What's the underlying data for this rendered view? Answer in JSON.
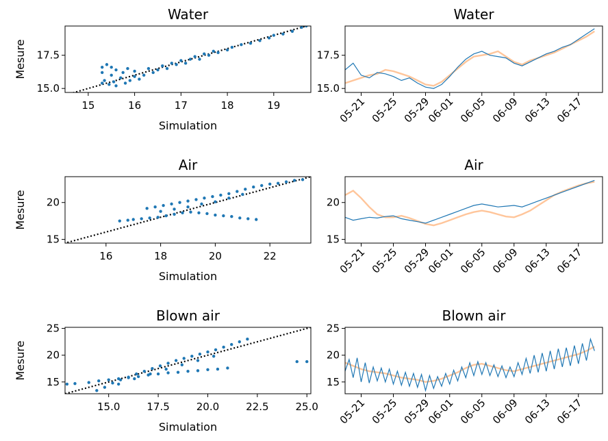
{
  "chart_data": [
    {
      "type": "scatter",
      "panel": "scatter-water",
      "title": "Water",
      "xlabel": "Simulation",
      "ylabel": "Mesure",
      "xlim": [
        14.5,
        19.8
      ],
      "ylim": [
        14.7,
        19.7
      ],
      "xticks": [
        "15",
        "16",
        "17",
        "18",
        "19"
      ],
      "xtick_values": [
        15,
        16,
        17,
        18,
        19
      ],
      "yticks": [
        "15.0",
        "17.5"
      ],
      "ytick_values": [
        15.0,
        17.5
      ],
      "identity_line": true,
      "points": [
        [
          15.3,
          15.4
        ],
        [
          15.3,
          16.2
        ],
        [
          15.3,
          16.6
        ],
        [
          15.35,
          15.6
        ],
        [
          15.4,
          16.8
        ],
        [
          15.45,
          15.3
        ],
        [
          15.5,
          16.0
        ],
        [
          15.5,
          16.6
        ],
        [
          15.55,
          15.5
        ],
        [
          15.6,
          15.2
        ],
        [
          15.6,
          16.4
        ],
        [
          15.7,
          15.8
        ],
        [
          15.75,
          16.2
        ],
        [
          15.8,
          15.4
        ],
        [
          15.85,
          16.5
        ],
        [
          15.9,
          15.6
        ],
        [
          16.0,
          15.9
        ],
        [
          16.0,
          16.3
        ],
        [
          16.1,
          15.7
        ],
        [
          16.2,
          16.0
        ],
        [
          16.3,
          16.5
        ],
        [
          16.4,
          16.2
        ],
        [
          16.5,
          16.4
        ],
        [
          16.6,
          16.7
        ],
        [
          16.7,
          16.5
        ],
        [
          16.8,
          16.9
        ],
        [
          16.9,
          16.8
        ],
        [
          17.0,
          17.1
        ],
        [
          17.1,
          16.9
        ],
        [
          17.2,
          17.2
        ],
        [
          17.3,
          17.4
        ],
        [
          17.4,
          17.2
        ],
        [
          17.5,
          17.6
        ],
        [
          17.6,
          17.5
        ],
        [
          17.7,
          17.8
        ],
        [
          17.8,
          17.7
        ],
        [
          18.0,
          17.9
        ],
        [
          18.1,
          18.1
        ],
        [
          18.3,
          18.3
        ],
        [
          18.5,
          18.4
        ],
        [
          18.7,
          18.6
        ],
        [
          18.9,
          18.8
        ],
        [
          19.0,
          19.0
        ],
        [
          19.2,
          19.1
        ],
        [
          19.4,
          19.3
        ],
        [
          19.6,
          19.6
        ],
        [
          19.7,
          19.7
        ]
      ]
    },
    {
      "type": "line",
      "panel": "ts-water",
      "title": "Water",
      "ylim": [
        14.7,
        19.7
      ],
      "yticks": [
        "15.0",
        "17.5"
      ],
      "ytick_values": [
        15.0,
        17.5
      ],
      "xlim": [
        0,
        32
      ],
      "xticks": [
        "05-21",
        "05-25",
        "05-29",
        "06-01",
        "06-05",
        "06-09",
        "06-13",
        "06-17"
      ],
      "xtick_values": [
        2,
        6,
        10,
        13,
        17,
        21,
        25,
        29
      ],
      "series": [
        {
          "role": "measure",
          "color": "#1f77b4",
          "x": [
            0,
            1,
            2,
            3,
            4,
            5,
            6,
            7,
            8,
            9,
            10,
            11,
            12,
            13,
            14,
            15,
            16,
            17,
            18,
            19,
            20,
            21,
            22,
            23,
            24,
            25,
            26,
            27,
            28,
            29,
            30,
            31
          ],
          "y": [
            16.4,
            16.9,
            16.0,
            15.8,
            16.2,
            16.1,
            15.9,
            15.6,
            15.8,
            15.4,
            15.1,
            15.0,
            15.3,
            15.9,
            16.6,
            17.2,
            17.6,
            17.8,
            17.5,
            17.4,
            17.3,
            16.9,
            16.7,
            17.0,
            17.3,
            17.6,
            17.8,
            18.1,
            18.3,
            18.7,
            19.1,
            19.5
          ]
        },
        {
          "role": "simulation",
          "color": "#ffbb88",
          "x": [
            0,
            1,
            2,
            3,
            4,
            5,
            6,
            7,
            8,
            9,
            10,
            11,
            12,
            13,
            14,
            15,
            16,
            17,
            18,
            19,
            20,
            21,
            22,
            23,
            24,
            25,
            26,
            27,
            28,
            29,
            30,
            31
          ],
          "y": [
            15.4,
            15.6,
            15.8,
            16.0,
            16.1,
            16.4,
            16.3,
            16.1,
            15.9,
            15.6,
            15.3,
            15.2,
            15.5,
            16.0,
            16.5,
            17.0,
            17.4,
            17.5,
            17.6,
            17.8,
            17.4,
            17.0,
            16.8,
            17.1,
            17.3,
            17.5,
            17.7,
            18.0,
            18.3,
            18.6,
            18.9,
            19.3
          ]
        }
      ]
    },
    {
      "type": "scatter",
      "panel": "scatter-air",
      "title": "Air",
      "xlabel": "Simulation",
      "ylabel": "Mesure",
      "xlim": [
        14.5,
        23.5
      ],
      "ylim": [
        14.5,
        23.5
      ],
      "xticks": [
        "16",
        "18",
        "20",
        "22"
      ],
      "xtick_values": [
        16,
        18,
        20,
        22
      ],
      "yticks": [
        "15",
        "20"
      ],
      "ytick_values": [
        15,
        20
      ],
      "identity_line": true,
      "points": [
        [
          16.5,
          17.5
        ],
        [
          16.8,
          17.6
        ],
        [
          17.0,
          17.7
        ],
        [
          17.3,
          17.8
        ],
        [
          17.6,
          17.9
        ],
        [
          17.9,
          18.0
        ],
        [
          18.2,
          18.2
        ],
        [
          18.5,
          18.4
        ],
        [
          18.8,
          18.6
        ],
        [
          19.1,
          18.7
        ],
        [
          19.4,
          18.6
        ],
        [
          19.7,
          18.5
        ],
        [
          20.0,
          18.3
        ],
        [
          20.3,
          18.2
        ],
        [
          20.6,
          18.1
        ],
        [
          20.9,
          17.9
        ],
        [
          21.2,
          17.8
        ],
        [
          21.5,
          17.7
        ],
        [
          17.5,
          19.2
        ],
        [
          17.8,
          19.4
        ],
        [
          18.1,
          19.6
        ],
        [
          18.4,
          19.8
        ],
        [
          18.7,
          20.0
        ],
        [
          19.0,
          20.2
        ],
        [
          19.3,
          20.4
        ],
        [
          19.6,
          20.6
        ],
        [
          19.9,
          20.8
        ],
        [
          20.2,
          21.0
        ],
        [
          20.5,
          21.2
        ],
        [
          20.8,
          21.5
        ],
        [
          21.1,
          21.8
        ],
        [
          21.4,
          22.1
        ],
        [
          21.7,
          22.3
        ],
        [
          22.0,
          22.5
        ],
        [
          22.3,
          22.6
        ],
        [
          22.6,
          22.8
        ],
        [
          22.9,
          23.0
        ],
        [
          23.2,
          23.1
        ],
        [
          18.0,
          18.8
        ],
        [
          18.5,
          19.1
        ],
        [
          19.0,
          19.4
        ],
        [
          19.5,
          19.8
        ],
        [
          20.0,
          20.1
        ],
        [
          20.5,
          20.6
        ],
        [
          21.0,
          21.1
        ]
      ]
    },
    {
      "type": "line",
      "panel": "ts-air",
      "title": "Air",
      "ylim": [
        14.5,
        23.5
      ],
      "yticks": [
        "15",
        "20"
      ],
      "ytick_values": [
        15,
        20
      ],
      "xlim": [
        0,
        32
      ],
      "xticks": [
        "05-21",
        "05-25",
        "05-29",
        "06-01",
        "06-05",
        "06-09",
        "06-13",
        "06-17"
      ],
      "xtick_values": [
        2,
        6,
        10,
        13,
        17,
        21,
        25,
        29
      ],
      "series": [
        {
          "role": "measure",
          "color": "#1f77b4",
          "x": [
            0,
            1,
            2,
            3,
            4,
            5,
            6,
            7,
            8,
            9,
            10,
            11,
            12,
            13,
            14,
            15,
            16,
            17,
            18,
            19,
            20,
            21,
            22,
            23,
            24,
            25,
            26,
            27,
            28,
            29,
            30,
            31
          ],
          "y": [
            18.0,
            17.6,
            17.8,
            18.0,
            17.9,
            18.1,
            18.2,
            17.8,
            17.6,
            17.4,
            17.2,
            17.6,
            18.0,
            18.4,
            18.8,
            19.2,
            19.6,
            19.8,
            19.6,
            19.4,
            19.5,
            19.6,
            19.4,
            19.8,
            20.2,
            20.6,
            21.0,
            21.4,
            21.8,
            22.2,
            22.6,
            23.0
          ]
        },
        {
          "role": "simulation",
          "color": "#ffbb88",
          "x": [
            0,
            1,
            2,
            3,
            4,
            5,
            6,
            7,
            8,
            9,
            10,
            11,
            12,
            13,
            14,
            15,
            16,
            17,
            18,
            19,
            20,
            21,
            22,
            23,
            24,
            25,
            26,
            27,
            28,
            29,
            30,
            31
          ],
          "y": [
            21.0,
            21.6,
            20.6,
            19.4,
            18.4,
            18.0,
            18.0,
            18.2,
            17.9,
            17.5,
            17.1,
            16.9,
            17.2,
            17.6,
            18.0,
            18.4,
            18.7,
            18.9,
            18.7,
            18.4,
            18.1,
            18.0,
            18.4,
            18.9,
            19.6,
            20.3,
            21.0,
            21.5,
            21.9,
            22.3,
            22.6,
            22.8
          ]
        }
      ]
    },
    {
      "type": "scatter",
      "panel": "scatter-blown",
      "title": "Blown air",
      "xlabel": "Simulation",
      "ylabel": "Mesure",
      "xlim": [
        12.8,
        25.2
      ],
      "ylim": [
        12.8,
        25.2
      ],
      "xticks": [
        "15.0",
        "17.5",
        "20.0",
        "22.5",
        "25.0"
      ],
      "xtick_values": [
        15.0,
        17.5,
        20.0,
        22.5,
        25.0
      ],
      "yticks": [
        "15",
        "20",
        "25"
      ],
      "ytick_values": [
        15,
        20,
        25
      ],
      "identity_line": true,
      "points": [
        [
          12.9,
          14.6
        ],
        [
          13.3,
          14.7
        ],
        [
          14.0,
          14.9
        ],
        [
          14.5,
          15.2
        ],
        [
          15.0,
          15.4
        ],
        [
          15.5,
          15.6
        ],
        [
          16.0,
          15.8
        ],
        [
          16.5,
          16.0
        ],
        [
          17.0,
          16.3
        ],
        [
          17.5,
          16.5
        ],
        [
          18.0,
          16.7
        ],
        [
          18.5,
          16.8
        ],
        [
          19.0,
          17.0
        ],
        [
          19.5,
          17.1
        ],
        [
          20.0,
          17.3
        ],
        [
          20.5,
          17.4
        ],
        [
          21.0,
          17.6
        ],
        [
          14.4,
          13.4
        ],
        [
          14.8,
          14.0
        ],
        [
          15.2,
          14.8
        ],
        [
          15.6,
          15.4
        ],
        [
          16.0,
          15.9
        ],
        [
          16.4,
          16.5
        ],
        [
          16.8,
          17.0
        ],
        [
          17.2,
          17.5
        ],
        [
          17.6,
          18.0
        ],
        [
          18.0,
          18.5
        ],
        [
          18.4,
          19.0
        ],
        [
          18.8,
          19.4
        ],
        [
          19.2,
          19.8
        ],
        [
          19.6,
          20.2
        ],
        [
          20.0,
          20.6
        ],
        [
          20.4,
          21.0
        ],
        [
          20.8,
          21.5
        ],
        [
          21.2,
          22.0
        ],
        [
          21.6,
          22.5
        ],
        [
          22.0,
          23.0
        ],
        [
          15.5,
          14.6
        ],
        [
          16.3,
          15.6
        ],
        [
          17.1,
          16.5
        ],
        [
          17.9,
          17.4
        ],
        [
          18.7,
          18.2
        ],
        [
          19.5,
          19.0
        ],
        [
          20.3,
          19.8
        ],
        [
          24.5,
          18.8
        ],
        [
          25.0,
          18.8
        ]
      ]
    },
    {
      "type": "line",
      "panel": "ts-blown",
      "title": "Blown air",
      "ylim": [
        12.8,
        25.2
      ],
      "yticks": [
        "15",
        "20",
        "25"
      ],
      "ytick_values": [
        15,
        20,
        25
      ],
      "xlim": [
        0,
        32
      ],
      "xticks": [
        "05-21",
        "05-25",
        "05-29",
        "06-01",
        "06-05",
        "06-09",
        "06-13",
        "06-17"
      ],
      "xtick_values": [
        2,
        6,
        10,
        13,
        17,
        21,
        25,
        29
      ],
      "series": [
        {
          "role": "measure",
          "color": "#1f77b4",
          "x": [
            0,
            0.5,
            1,
            1.5,
            2,
            2.5,
            3,
            3.5,
            4,
            4.5,
            5,
            5.5,
            6,
            6.5,
            7,
            7.5,
            8,
            8.5,
            9,
            9.5,
            10,
            10.5,
            11,
            11.5,
            12,
            12.5,
            13,
            13.5,
            14,
            14.5,
            15,
            15.5,
            16,
            16.5,
            17,
            17.5,
            18,
            18.5,
            19,
            19.5,
            20,
            20.5,
            21,
            21.5,
            22,
            22.5,
            23,
            23.5,
            24,
            24.5,
            25,
            25.5,
            26,
            26.5,
            27,
            27.5,
            28,
            28.5,
            29,
            29.5,
            30,
            30.5,
            31
          ],
          "y": [
            17.0,
            19.2,
            15.8,
            19.5,
            15.0,
            18.6,
            14.8,
            17.8,
            15.2,
            17.6,
            15.0,
            17.4,
            14.6,
            17.0,
            14.4,
            16.8,
            14.2,
            16.6,
            14.0,
            16.4,
            13.4,
            16.2,
            13.8,
            16.0,
            14.2,
            16.6,
            14.6,
            17.2,
            15.2,
            17.8,
            15.8,
            18.6,
            16.2,
            18.8,
            16.4,
            18.6,
            16.2,
            18.2,
            16.0,
            18.0,
            15.8,
            17.8,
            16.0,
            18.6,
            16.4,
            19.4,
            16.6,
            20.0,
            16.8,
            20.4,
            17.0,
            20.8,
            17.4,
            21.2,
            17.8,
            21.4,
            18.0,
            21.8,
            18.4,
            22.2,
            19.0,
            23.0,
            20.8
          ]
        },
        {
          "role": "simulation",
          "color": "#ffbb88",
          "x": [
            0,
            1,
            2,
            3,
            4,
            5,
            6,
            7,
            8,
            9,
            10,
            11,
            12,
            13,
            14,
            15,
            16,
            17,
            18,
            19,
            20,
            21,
            22,
            23,
            24,
            25,
            26,
            27,
            28,
            29,
            30,
            31
          ],
          "y": [
            18.6,
            18.0,
            17.4,
            17.0,
            16.8,
            16.6,
            16.2,
            15.8,
            15.6,
            15.4,
            15.0,
            15.2,
            15.6,
            16.2,
            16.8,
            17.6,
            18.2,
            18.4,
            18.0,
            17.6,
            17.2,
            17.0,
            17.4,
            17.8,
            18.2,
            18.6,
            19.0,
            19.4,
            19.8,
            20.2,
            20.8,
            21.6
          ]
        }
      ]
    }
  ]
}
